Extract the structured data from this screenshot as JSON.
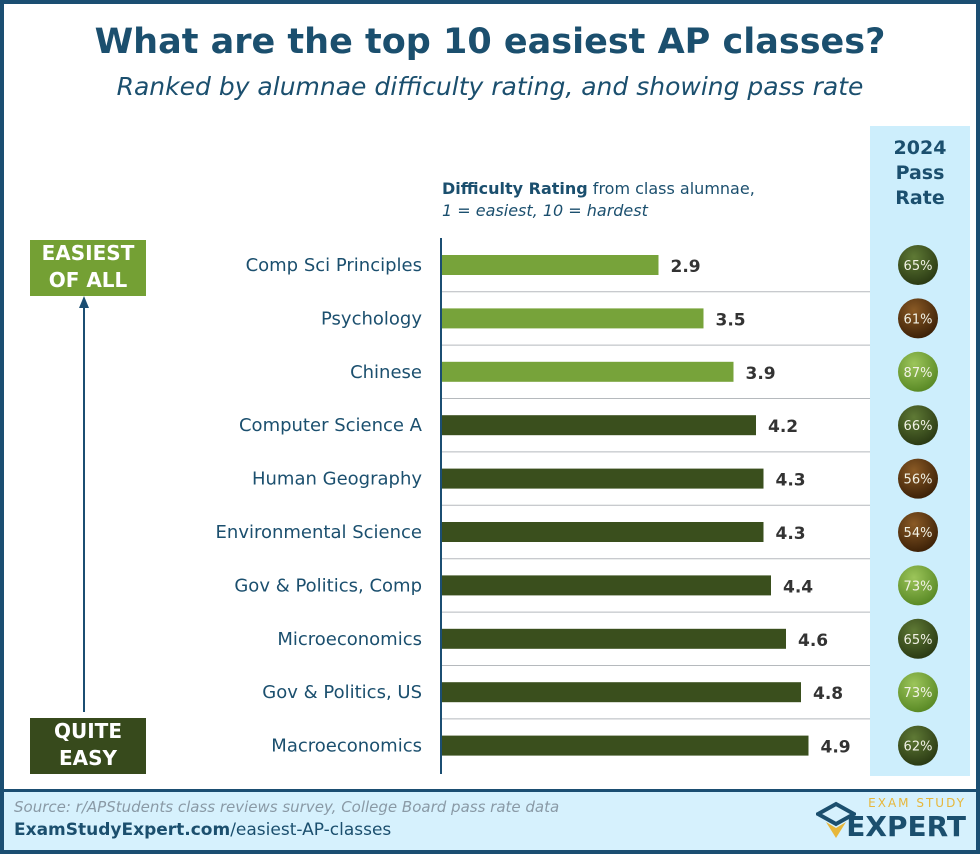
{
  "title": "What are the top 10 easiest AP classes?",
  "subtitle": "Ranked by alumnae difficulty rating, and showing pass rate",
  "pass_header": [
    "2024",
    "Pass",
    "Rate"
  ],
  "legend": {
    "bold": "Difficulty Rating",
    "rest": " from class alumnae,",
    "line2": "1 = easiest, 10 = hardest"
  },
  "labels": {
    "top": [
      "EASIEST",
      "OF ALL"
    ],
    "bottom": [
      "QUITE",
      "EASY"
    ]
  },
  "colors": {
    "light_green": "#77a33a",
    "dark_green": "#3a4f1d",
    "brown": "#5a3510",
    "navy": "#1b4f6e",
    "pass_bg": "#cdeefc"
  },
  "chart_data": {
    "type": "bar",
    "orientation": "horizontal",
    "title": "What are the top 10 easiest AP classes?",
    "xlabel": "Difficulty Rating from class alumnae, 1 = easiest, 10 = hardest",
    "xlim": [
      0,
      10
    ],
    "categories": [
      "Comp Sci Principles",
      "Psychology",
      "Chinese",
      "Computer Science A",
      "Human Geography",
      "Environmental Science",
      "Gov & Politics, Comp",
      "Microeconomics",
      "Gov & Politics, US",
      "Macroeconomics"
    ],
    "values": [
      2.9,
      3.5,
      3.9,
      4.2,
      4.3,
      4.3,
      4.4,
      4.6,
      4.8,
      4.9
    ],
    "bar_colors": [
      "light",
      "light",
      "light",
      "dark",
      "dark",
      "dark",
      "dark",
      "dark",
      "dark",
      "dark"
    ],
    "pass_rates": [
      "65%",
      "61%",
      "87%",
      "66%",
      "56%",
      "54%",
      "73%",
      "65%",
      "73%",
      "62%"
    ],
    "pass_colors": [
      "dark",
      "brown",
      "light",
      "dark",
      "brown",
      "brown",
      "light",
      "dark",
      "light",
      "dark"
    ]
  },
  "footer": {
    "source": "Source: r/APStudents class reviews survey, College Board pass rate data",
    "url_bold": "ExamStudyExpert.com",
    "url_rest": "/easiest-AP-classes",
    "logo_top": "EXAM STUDY",
    "logo_bottom": "EXPERT"
  }
}
